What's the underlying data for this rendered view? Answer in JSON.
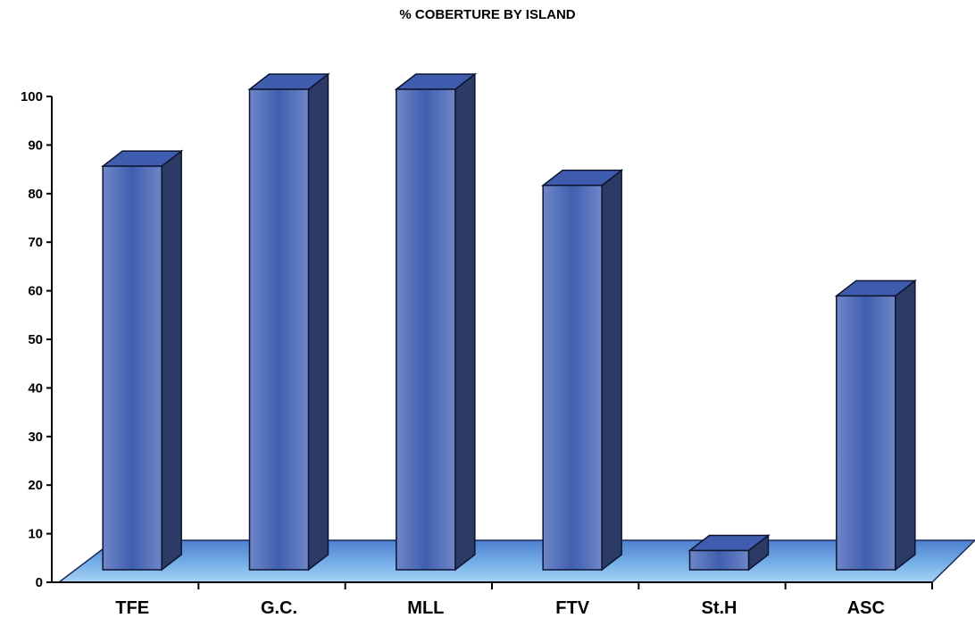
{
  "chart_data": {
    "type": "bar",
    "title": "% COBERTURE BY ISLAND",
    "categories": [
      "TFE",
      "G.C.",
      "MLL",
      "FTV",
      "St.H",
      "ASC"
    ],
    "values": [
      84,
      100,
      100,
      80,
      4,
      57
    ],
    "ylim": [
      0,
      100
    ],
    "yticks": [
      "0",
      "10",
      "20",
      "30",
      "40",
      "50",
      "60",
      "70",
      "80",
      "90",
      "100"
    ],
    "xlabel": "",
    "ylabel": "",
    "style": "3d-bars",
    "colors": {
      "bar_front": "#6f86c8",
      "bar_center": "#3f5fb0",
      "bar_side": "#2c3a66",
      "bar_top": "#3f5cae",
      "floor": "#6ca3e0"
    },
    "grid": false,
    "legend": "none"
  }
}
